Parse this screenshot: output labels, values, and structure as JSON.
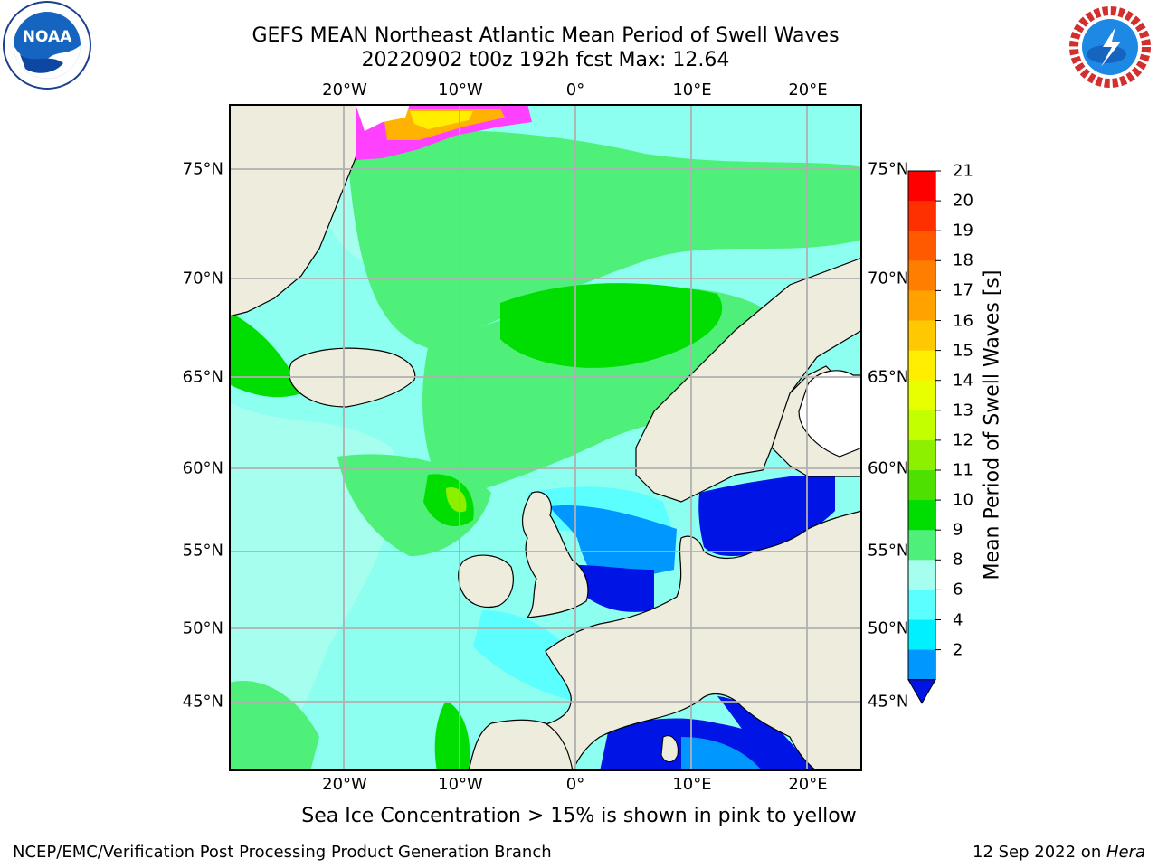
{
  "title": {
    "line1": "GEFS MEAN Northeast Atlantic Mean Period of Swell Waves",
    "line2": "20220902 t00z 192h fcst   Max: 12.64"
  },
  "logos": {
    "left": "NOAA",
    "right": "NATIONAL WEATHER SERVICE"
  },
  "axes": {
    "lon_top": [
      "20°W",
      "10°W",
      "0°",
      "10°E",
      "20°E"
    ],
    "lon_bottom": [
      "20°W",
      "10°W",
      "0°",
      "10°E",
      "20°E"
    ],
    "lat_left": [
      "75°N",
      "70°N",
      "65°N",
      "60°N",
      "55°N",
      "50°N",
      "45°N"
    ],
    "lat_right": [
      "75°N",
      "70°N",
      "65°N",
      "60°N",
      "55°N",
      "50°N",
      "45°N"
    ]
  },
  "colorbar": {
    "label": "Mean Period of Swell Waves [s]",
    "ticks": [
      "21",
      "20",
      "19",
      "18",
      "17",
      "16",
      "15",
      "14",
      "13",
      "12",
      "11",
      "10",
      "9",
      "8",
      "6",
      "4",
      "2"
    ],
    "colors": [
      "#ff0000",
      "#ff3000",
      "#ff5a00",
      "#ff7e00",
      "#ffa200",
      "#ffc800",
      "#ffee00",
      "#e8ff00",
      "#c4ff00",
      "#8cf000",
      "#4ee000",
      "#00dd00",
      "#4ef07a",
      "#a6ffee",
      "#5cffff",
      "#00f0ff",
      "#0098ff",
      "#0014e6"
    ]
  },
  "note": "Sea Ice Concentration > 15% is shown in pink to yellow",
  "footer": {
    "left": "NCEP/EMC/Verification Post Processing Product Generation Branch",
    "right_date": "12 Sep 2022 on ",
    "right_host": "Hera"
  }
}
